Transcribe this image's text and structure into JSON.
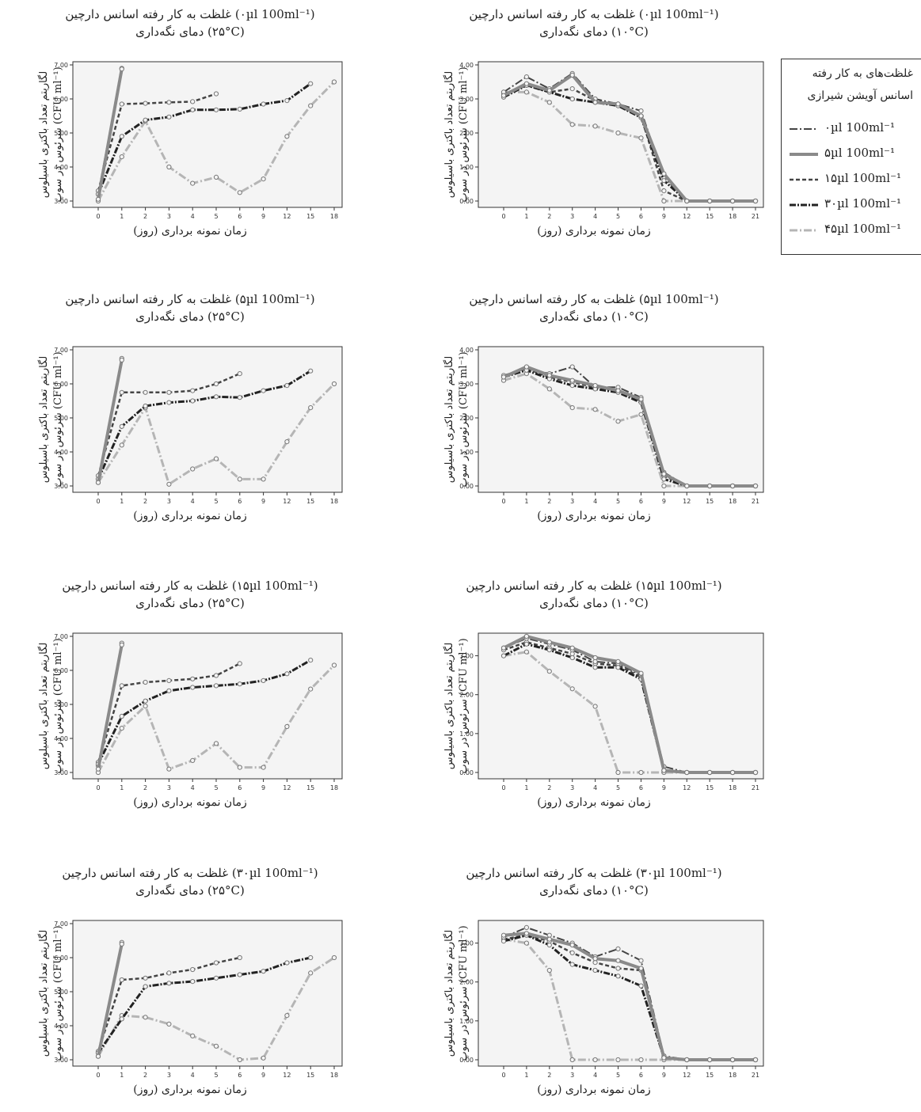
{
  "common": {
    "x_label": "زمان نمونه برداری (روز)",
    "y_label_line1": "لگاریتم تعداد باکتری باسیلوس",
    "y_label_line2": "سرئوس در سوپ (CFU ml⁻¹)"
  },
  "legend": {
    "header_line1": "غلظت‌های به کار رفته",
    "header_line2": "اسانس آویشن شیرازی",
    "items": [
      {
        "label": "۰µl 100ml⁻¹",
        "style": "dash-dot"
      },
      {
        "label": "۵µl 100ml⁻¹",
        "style": "solid-thick"
      },
      {
        "label": "۱۵µl 100ml⁻¹",
        "style": "dashed"
      },
      {
        "label": "۳۰µl 100ml⁻¹",
        "style": "dash-dot-dark"
      },
      {
        "label": "۴۵µl 100ml⁻¹",
        "style": "dash-dot-light"
      }
    ]
  },
  "chart_data": [
    {
      "type": "line",
      "title": "غلظت به کار رفته اسانس دارچین (۰µl 100ml⁻¹)",
      "subtitle": "دمای نگه‌داری (۲۵°C)",
      "temp": "25",
      "x": [
        "0",
        "1",
        "2",
        "3",
        "4",
        "5",
        "6",
        "9",
        "12",
        "15",
        "18"
      ],
      "ylim": [
        3,
        7
      ],
      "yticks": [
        "3.00",
        "4.00",
        "5.00",
        "6.00",
        "7.00"
      ],
      "series": [
        {
          "name": "۰µl 100ml⁻¹",
          "values": [
            3.2,
            6.9,
            null,
            null,
            null,
            null,
            null,
            null,
            null,
            null,
            null
          ]
        },
        {
          "name": "۵µl 100ml⁻¹",
          "values": [
            3.05,
            6.88,
            null,
            null,
            null,
            null,
            null,
            null,
            null,
            null,
            null
          ]
        },
        {
          "name": "۱۵µl 100ml⁻¹",
          "values": [
            3.3,
            5.85,
            5.87,
            5.9,
            5.92,
            6.15,
            null,
            null,
            null,
            null,
            null
          ]
        },
        {
          "name": "۳۰µl 100ml⁻¹",
          "values": [
            3.2,
            4.9,
            5.38,
            5.47,
            5.68,
            5.68,
            5.7,
            5.85,
            5.95,
            6.45,
            null
          ]
        },
        {
          "name": "۴۵µl 100ml⁻¹",
          "values": [
            3.0,
            4.3,
            5.35,
            4.0,
            3.52,
            3.7,
            3.25,
            3.65,
            4.9,
            5.8,
            6.5
          ]
        }
      ]
    },
    {
      "type": "line",
      "title": "غلظت به کار رفته اسانس دارچین (۰µl 100ml⁻¹)",
      "subtitle": "دمای نگه‌داری (۱۰°C)",
      "temp": "10",
      "x": [
        "0",
        "1",
        "2",
        "3",
        "4",
        "5",
        "6",
        "9",
        "12",
        "15",
        "18",
        "21"
      ],
      "ylim": [
        0,
        4
      ],
      "yticks": [
        "0.00",
        "1.00",
        "2.00",
        "3.00",
        "4.00"
      ],
      "series": [
        {
          "name": "۰µl 100ml⁻¹",
          "values": [
            3.2,
            3.65,
            3.3,
            3.75,
            3.0,
            2.85,
            2.65,
            0.7,
            0,
            0,
            0,
            0
          ]
        },
        {
          "name": "۵µl 100ml⁻¹",
          "values": [
            3.1,
            3.45,
            3.25,
            3.7,
            2.9,
            2.85,
            2.5,
            0.8,
            0,
            0,
            0,
            0
          ]
        },
        {
          "name": "۱۵µl 100ml⁻¹",
          "values": [
            3.15,
            3.4,
            3.2,
            3.3,
            2.95,
            2.8,
            2.5,
            0.3,
            0,
            0,
            0,
            0
          ]
        },
        {
          "name": "۳۰µl 100ml⁻¹",
          "values": [
            3.05,
            3.4,
            3.2,
            3.0,
            2.9,
            2.8,
            2.45,
            0.6,
            0,
            0,
            0,
            0
          ]
        },
        {
          "name": "۴۵µl 100ml⁻¹",
          "values": [
            3.2,
            3.2,
            2.9,
            2.25,
            2.2,
            2.0,
            1.85,
            0,
            0,
            0,
            0,
            0
          ]
        }
      ]
    },
    {
      "type": "line",
      "title": "غلظت به کار رفته اسانس دارچین (۵µl 100ml⁻¹)",
      "subtitle": "دمای نگه‌داری (۲۵°C)",
      "temp": "25",
      "x": [
        "0",
        "1",
        "2",
        "3",
        "4",
        "5",
        "6",
        "9",
        "12",
        "15",
        "18"
      ],
      "ylim": [
        3,
        7
      ],
      "yticks": [
        "3.00",
        "4.00",
        "5.00",
        "6.00",
        "7.00"
      ],
      "series": [
        {
          "name": "۰µl 100ml⁻¹",
          "values": [
            3.2,
            6.75,
            null,
            null,
            null,
            null,
            null,
            null,
            null,
            null,
            null
          ]
        },
        {
          "name": "۵µl 100ml⁻¹",
          "values": [
            3.1,
            6.7,
            null,
            null,
            null,
            null,
            null,
            null,
            null,
            null,
            null
          ]
        },
        {
          "name": "۱۵µl 100ml⁻¹",
          "values": [
            3.3,
            5.75,
            5.75,
            5.75,
            5.8,
            6.0,
            6.3,
            null,
            null,
            null,
            null
          ]
        },
        {
          "name": "۳۰µl 100ml⁻¹",
          "values": [
            3.2,
            4.75,
            5.35,
            5.45,
            5.5,
            5.62,
            5.6,
            5.8,
            5.95,
            6.38,
            null
          ]
        },
        {
          "name": "۴۵µl 100ml⁻¹",
          "values": [
            3.1,
            4.2,
            5.3,
            3.05,
            3.5,
            3.8,
            3.2,
            3.2,
            4.3,
            5.3,
            6.0
          ]
        }
      ]
    },
    {
      "type": "line",
      "title": "غلظت به کار رفته اسانس دارچین (۵µl 100ml⁻¹)",
      "subtitle": "دمای نگه‌داری (۱۰°C)",
      "temp": "10",
      "x": [
        "0",
        "1",
        "2",
        "3",
        "4",
        "5",
        "6",
        "9",
        "12",
        "15",
        "18",
        "21"
      ],
      "ylim": [
        0,
        4
      ],
      "yticks": [
        "0.00",
        "1.00",
        "2.00",
        "3.00",
        "4.00"
      ],
      "series": [
        {
          "name": "۰µl 100ml⁻¹",
          "values": [
            3.25,
            3.45,
            3.3,
            3.5,
            2.9,
            2.9,
            2.6,
            0.4,
            0,
            0,
            0,
            0
          ]
        },
        {
          "name": "۵µl 100ml⁻¹",
          "values": [
            3.2,
            3.5,
            3.25,
            3.1,
            2.95,
            2.8,
            2.55,
            0.35,
            0,
            0,
            0,
            0
          ]
        },
        {
          "name": "۱۵µl 100ml⁻¹",
          "values": [
            3.2,
            3.45,
            3.2,
            3.05,
            2.9,
            2.8,
            2.5,
            0.3,
            0,
            0,
            0,
            0
          ]
        },
        {
          "name": "۳۰µl 100ml⁻¹",
          "values": [
            3.2,
            3.4,
            3.15,
            2.95,
            2.85,
            2.75,
            2.45,
            0.2,
            0,
            0,
            0,
            0
          ]
        },
        {
          "name": "۴۵µl 100ml⁻¹",
          "values": [
            3.1,
            3.3,
            2.85,
            2.3,
            2.25,
            1.9,
            2.1,
            0,
            0,
            0,
            0,
            0
          ]
        }
      ]
    },
    {
      "type": "line",
      "title": "غلظت به کار رفته اسانس دارچین (۱۵µl 100ml⁻¹)",
      "subtitle": "دمای نگه‌داری (۲۵°C)",
      "temp": "25",
      "x": [
        "0",
        "1",
        "2",
        "3",
        "4",
        "5",
        "6",
        "9",
        "12",
        "15",
        "18"
      ],
      "ylim": [
        3,
        7
      ],
      "yticks": [
        "3.00",
        "4.00",
        "5.00",
        "6.00",
        "7.00"
      ],
      "series": [
        {
          "name": "۰µl 100ml⁻¹",
          "values": [
            3.2,
            6.8,
            null,
            null,
            null,
            null,
            null,
            null,
            null,
            null,
            null
          ]
        },
        {
          "name": "۵µl 100ml⁻¹",
          "values": [
            3.1,
            6.75,
            null,
            null,
            null,
            null,
            null,
            null,
            null,
            null,
            null
          ]
        },
        {
          "name": "۱۵µl 100ml⁻¹",
          "values": [
            3.3,
            5.55,
            5.65,
            5.7,
            5.75,
            5.85,
            6.2,
            null,
            null,
            null,
            null
          ]
        },
        {
          "name": "۳۰µl 100ml⁻¹",
          "values": [
            3.25,
            4.65,
            5.1,
            5.4,
            5.5,
            5.55,
            5.6,
            5.7,
            5.9,
            6.3,
            null
          ]
        },
        {
          "name": "۴۵µl 100ml⁻¹",
          "values": [
            3.0,
            4.3,
            4.95,
            3.1,
            3.35,
            3.85,
            3.15,
            3.15,
            4.35,
            5.45,
            6.15
          ]
        }
      ]
    },
    {
      "type": "line",
      "title": "غلظت به کار رفته اسانس دارچین (۱۵µl 100ml⁻¹)",
      "subtitle": "دمای نگه‌داری (۱۰°C)",
      "temp": "10",
      "x": [
        "0",
        "1",
        "2",
        "3",
        "4",
        "5",
        "6",
        "9",
        "12",
        "15",
        "18",
        "21"
      ],
      "ylim": [
        0,
        3.5
      ],
      "yticks": [
        "0.00",
        "1.00",
        "2.00",
        "3.00"
      ],
      "series": [
        {
          "name": "۰µl 100ml⁻¹",
          "values": [
            3.2,
            3.45,
            3.3,
            3.15,
            2.85,
            2.8,
            2.5,
            0.15,
            0,
            0,
            0,
            0
          ]
        },
        {
          "name": "۵µl 100ml⁻¹",
          "values": [
            3.2,
            3.5,
            3.35,
            3.2,
            2.95,
            2.85,
            2.55,
            0.05,
            0,
            0,
            0,
            0
          ]
        },
        {
          "name": "۱۵µl 100ml⁻¹",
          "values": [
            3.15,
            3.35,
            3.2,
            3.05,
            2.8,
            2.75,
            2.45,
            0.05,
            0,
            0,
            0,
            0
          ]
        },
        {
          "name": "۳۰µl 100ml⁻¹",
          "values": [
            3.0,
            3.3,
            3.15,
            2.95,
            2.7,
            2.7,
            2.4,
            0.05,
            0,
            0,
            0,
            0
          ]
        },
        {
          "name": "۴۵µl 100ml⁻¹",
          "values": [
            3.0,
            3.1,
            2.6,
            2.15,
            1.7,
            0,
            0,
            0,
            0,
            0,
            0,
            0
          ]
        }
      ]
    },
    {
      "type": "line",
      "title": "غلظت به کار رفته اسانس دارچین (۳۰µl 100ml⁻¹)",
      "subtitle": "دمای نگه‌داری (۲۵°C)",
      "temp": "25",
      "x": [
        "0",
        "1",
        "2",
        "3",
        "4",
        "5",
        "6",
        "9",
        "12",
        "15",
        "18"
      ],
      "ylim": [
        3,
        7
      ],
      "yticks": [
        "3.00",
        "4.00",
        "5.00",
        "6.00",
        "7.00"
      ],
      "series": [
        {
          "name": "۰µl 100ml⁻¹",
          "values": [
            3.2,
            6.45,
            null,
            null,
            null,
            null,
            null,
            null,
            null,
            null,
            null
          ]
        },
        {
          "name": "۵µl 100ml⁻¹",
          "values": [
            3.1,
            6.4,
            null,
            null,
            null,
            null,
            null,
            null,
            null,
            null,
            null
          ]
        },
        {
          "name": "۱۵µl 100ml⁻¹",
          "values": [
            3.25,
            5.35,
            5.4,
            5.55,
            5.65,
            5.85,
            6.0,
            null,
            null,
            null,
            null
          ]
        },
        {
          "name": "۳۰µl 100ml⁻¹",
          "values": [
            3.2,
            4.2,
            5.15,
            5.25,
            5.3,
            5.4,
            5.5,
            5.6,
            5.85,
            6.0,
            null
          ]
        },
        {
          "name": "۴۵µl 100ml⁻¹",
          "values": [
            3.1,
            4.3,
            4.25,
            4.05,
            3.7,
            3.4,
            3.0,
            3.05,
            4.3,
            5.55,
            6.0
          ]
        }
      ]
    },
    {
      "type": "line",
      "title": "غلظت به کار رفته اسانس دارچین (۳۰µl 100ml⁻¹)",
      "subtitle": "دمای نگه‌داری (۱۰°C)",
      "temp": "10",
      "x": [
        "0",
        "1",
        "2",
        "3",
        "4",
        "5",
        "6",
        "9",
        "12",
        "15",
        "18",
        "21"
      ],
      "ylim": [
        0,
        3.5
      ],
      "yticks": [
        "0.00",
        "1.00",
        "2.00",
        "3.00"
      ],
      "series": [
        {
          "name": "۰µl 100ml⁻¹",
          "values": [
            3.15,
            3.4,
            3.2,
            3.0,
            2.65,
            2.85,
            2.55,
            0.1,
            0,
            0,
            0,
            0
          ]
        },
        {
          "name": "۵µl 100ml⁻¹",
          "values": [
            3.2,
            3.25,
            3.1,
            2.95,
            2.6,
            2.55,
            2.35,
            0.05,
            0,
            0,
            0,
            0
          ]
        },
        {
          "name": "۱۵µl 100ml⁻¹",
          "values": [
            3.1,
            3.2,
            3.05,
            2.75,
            2.5,
            2.35,
            2.3,
            0.05,
            0,
            0,
            0,
            0
          ]
        },
        {
          "name": "۳۰µl 100ml⁻¹",
          "values": [
            3.05,
            3.2,
            2.95,
            2.45,
            2.3,
            2.15,
            1.9,
            0.05,
            0,
            0,
            0,
            0
          ]
        },
        {
          "name": "۴۵µl 100ml⁻¹",
          "values": [
            3.1,
            3.0,
            2.3,
            0,
            0,
            0,
            0,
            0,
            0,
            0,
            0,
            0
          ]
        }
      ]
    }
  ]
}
